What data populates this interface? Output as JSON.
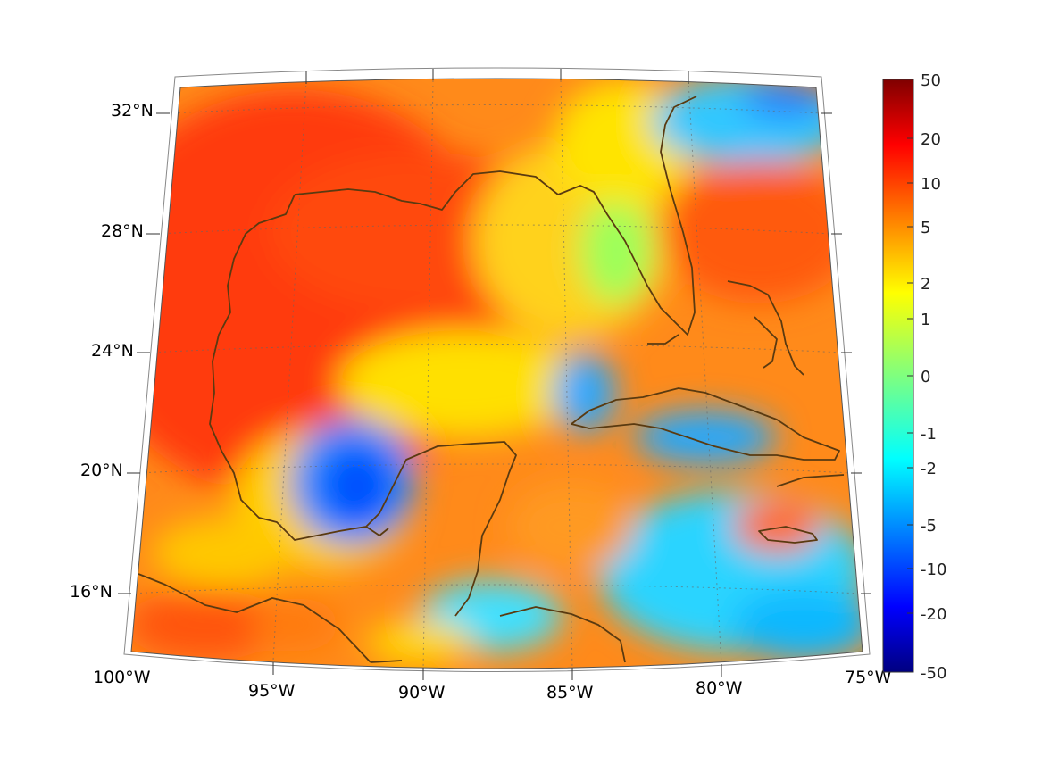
{
  "map": {
    "lon_labels": [
      "100°W",
      "95°W",
      "90°W",
      "85°W",
      "80°W",
      "75°W"
    ],
    "lat_labels": [
      "32°N",
      "28°N",
      "24°N",
      "20°N",
      "16°N"
    ],
    "extent": {
      "lon": [
        -100,
        -75
      ],
      "lat": [
        14,
        33
      ]
    },
    "grid": true,
    "coastline_color": "#5a3a10"
  },
  "colorbar": {
    "tick_labels": [
      "50",
      "20",
      "10",
      "5",
      "2",
      "1",
      "0",
      "-1",
      "-2",
      "-5",
      "-10",
      "-20",
      "-50"
    ],
    "colormap": "jet",
    "range": [
      -50,
      50
    ]
  },
  "colors": {
    "warm": "#ff3b0a",
    "neutral": "#ffff00",
    "cool": "#00c8ff",
    "coldest": "#000080",
    "hottest": "#800000"
  }
}
